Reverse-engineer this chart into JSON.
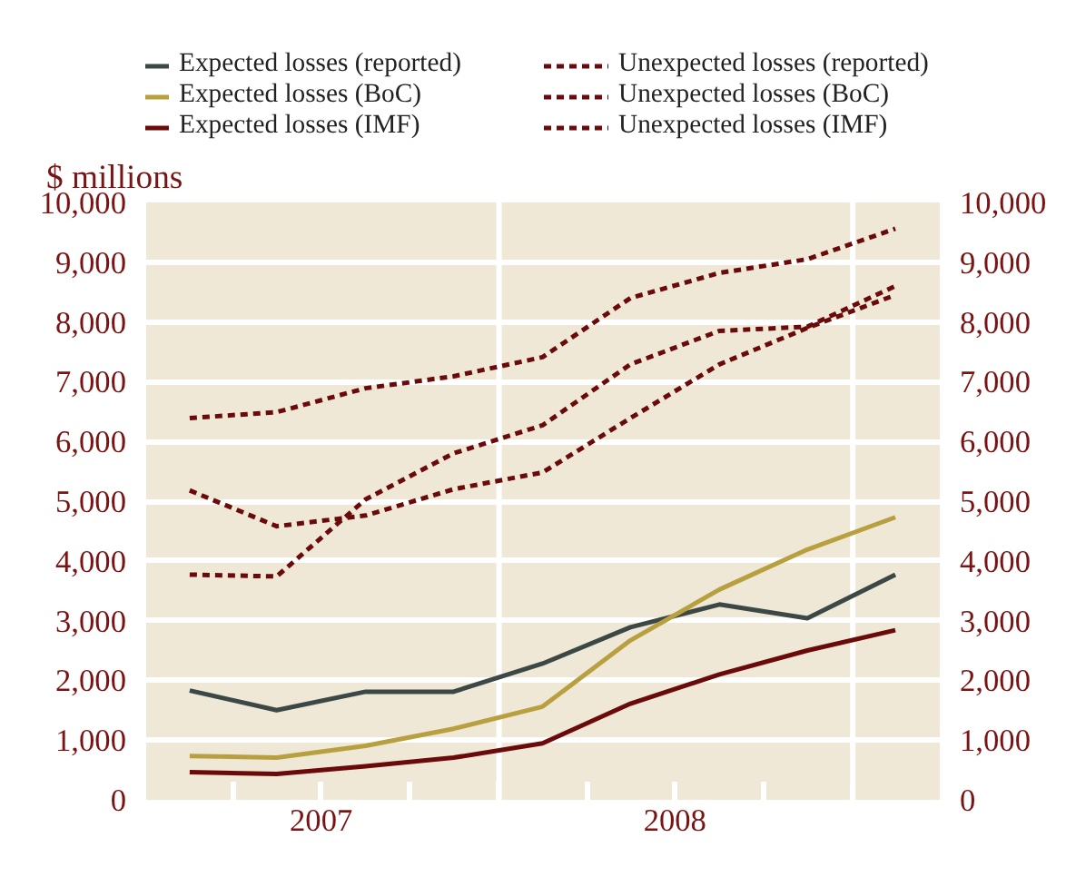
{
  "chart_data": {
    "type": "line",
    "ylabel": "$ millions",
    "x": [
      "2007-02-15",
      "2007-05-16",
      "2007-08-16",
      "2007-11-15",
      "2008-02-15",
      "2008-05-16",
      "2008-08-16",
      "2008-11-15",
      "2009-02-14"
    ],
    "xlim": [
      "2007-01-01",
      "2009-04-01"
    ],
    "xticks": [
      {
        "value": "2007-04-01",
        "label": null
      },
      {
        "value": "2007-07-01",
        "label": "2007"
      },
      {
        "value": "2007-10-01",
        "label": null
      },
      {
        "value": "2008-01-01",
        "label": null
      },
      {
        "value": "2008-04-01",
        "label": null
      },
      {
        "value": "2008-07-01",
        "label": "2008"
      },
      {
        "value": "2008-10-01",
        "label": null
      },
      {
        "value": "2009-01-01",
        "label": null
      }
    ],
    "ylim": [
      0,
      10000
    ],
    "yticks": [
      0,
      {
        "value": 1000,
        "label": "1,000"
      },
      {
        "value": 2000,
        "label": "2,000"
      },
      {
        "value": 3000,
        "label": "3,000"
      },
      {
        "value": 4000,
        "label": "4,000"
      },
      {
        "value": 5000,
        "label": "5,000"
      },
      {
        "value": 6000,
        "label": "6,000"
      },
      {
        "value": 7000,
        "label": "7,000"
      },
      {
        "value": 8000,
        "label": "8,000"
      },
      {
        "value": 9000,
        "label": "9,000"
      },
      {
        "value": 10000,
        "label": "10,000"
      }
    ],
    "y2lim": [
      0,
      10000
    ],
    "y2ticks": [
      0,
      {
        "value": 1000,
        "label": "1,000"
      },
      {
        "value": 2000,
        "label": "2,000"
      },
      {
        "value": 3000,
        "label": "3,000"
      },
      {
        "value": 4000,
        "label": "4,000"
      },
      {
        "value": 5000,
        "label": "5,000"
      },
      {
        "value": 6000,
        "label": "6,000"
      },
      {
        "value": 7000,
        "label": "7,000"
      },
      {
        "value": 8000,
        "label": "8,000"
      },
      {
        "value": 9000,
        "label": "9,000"
      },
      {
        "value": 10000,
        "label": "10,000"
      }
    ],
    "grid": "y",
    "legend": "top",
    "ref_lines": [
      {
        "axis": "x",
        "value": "2008-01-01",
        "label": null,
        "color": "#ffffff"
      },
      {
        "axis": "x",
        "value": "2009-01-01",
        "label": null,
        "color": "#ffffff"
      }
    ],
    "series": [
      {
        "name": "Expected losses (reported)",
        "color": "#3b4845",
        "line_style": "solid",
        "values": [
          1830,
          1500,
          1810,
          1810,
          2280,
          2890,
          3270,
          3040,
          3770
        ]
      },
      {
        "name": "Unexpected losses (reported)",
        "color": "#6b0a0a",
        "line_style": "dashed",
        "values": [
          3770,
          3740,
          5030,
          5800,
          6270,
          7290,
          7850,
          7920,
          8600
        ]
      },
      {
        "name": "Expected losses (BoC)",
        "color": "#b8a040",
        "line_style": "solid",
        "values": [
          735,
          706,
          905,
          1190,
          1560,
          2670,
          3520,
          4190,
          4730
        ]
      },
      {
        "name": "Unexpected losses (BoC)",
        "color": "#6b0a0a",
        "line_style": "dashed",
        "values": [
          5180,
          4580,
          4760,
          5200,
          5480,
          6390,
          7290,
          7900,
          8450
        ]
      },
      {
        "name": "Expected losses (IMF)",
        "color": "#6b0a0a",
        "line_style": "solid",
        "values": [
          464,
          434,
          564,
          706,
          947,
          1610,
          2100,
          2500,
          2840
        ]
      },
      {
        "name": "Unexpected losses (IMF)",
        "color": "#6b0a0a",
        "line_style": "dashed",
        "values": [
          6390,
          6490,
          6890,
          7090,
          7410,
          8400,
          8820,
          9050,
          9560
        ]
      }
    ]
  }
}
